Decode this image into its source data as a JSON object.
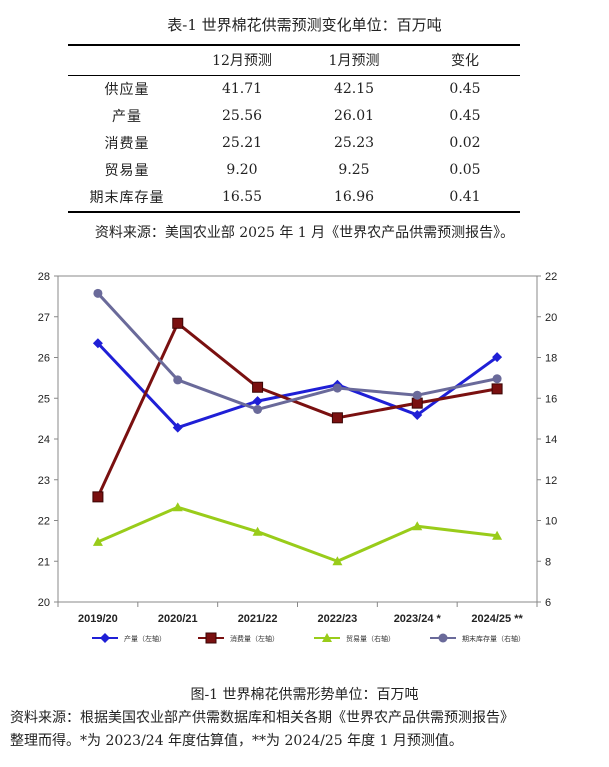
{
  "table": {
    "title": "表-1 世界棉花供需预测变化单位：百万吨",
    "headers": [
      "",
      "12月预测",
      "1月预测",
      "变化"
    ],
    "rows": [
      {
        "label": "供应量",
        "dec": "41.71",
        "jan": "42.15",
        "change": "0.45"
      },
      {
        "label": "产量",
        "dec": "25.56",
        "jan": "26.01",
        "change": "0.45"
      },
      {
        "label": "消费量",
        "dec": "25.21",
        "jan": "25.23",
        "change": "0.02"
      },
      {
        "label": "贸易量",
        "dec": "9.20",
        "jan": "9.25",
        "change": "0.05"
      },
      {
        "label": "期末库存量",
        "dec": "16.55",
        "jan": "16.96",
        "change": "0.41"
      }
    ],
    "source": "资料来源：美国农业部 2025 年 1 月《世界农产品供需预测报告》。"
  },
  "chart_data": {
    "type": "line",
    "categories": [
      "2019/20",
      "2020/21",
      "2021/22",
      "2022/23",
      "2023/24 *",
      "2024/25 **"
    ],
    "left_axis": {
      "min": 20,
      "max": 28,
      "step": 1,
      "ticks": [
        "20",
        "21",
        "22",
        "23",
        "24",
        "25",
        "26",
        "27",
        "28"
      ]
    },
    "right_axis": {
      "min": 6,
      "max": 22,
      "step": 2,
      "ticks": [
        "6",
        "8",
        "10",
        "12",
        "14",
        "16",
        "18",
        "20",
        "22"
      ]
    },
    "grid": false,
    "legend_position": "bottom",
    "series": [
      {
        "name": "产量（左轴）",
        "axis": "left",
        "color": "#1f1fd6",
        "marker": "diamond",
        "values": [
          26.35,
          24.28,
          24.93,
          25.33,
          24.59,
          26.01
        ]
      },
      {
        "name": "消费量（左轴）",
        "axis": "left",
        "color": "#7a1010",
        "marker": "square",
        "values": [
          22.58,
          26.84,
          25.27,
          24.52,
          24.88,
          25.23
        ]
      },
      {
        "name": "贸易量（右轴）",
        "axis": "right",
        "color": "#99cc1a",
        "marker": "triangle",
        "values": [
          8.95,
          10.65,
          9.45,
          8.0,
          9.72,
          9.25
        ]
      },
      {
        "name": "期末库存量（右轴）",
        "axis": "right",
        "color": "#6a6a9a",
        "marker": "circle",
        "values": [
          21.15,
          16.9,
          15.45,
          16.5,
          16.15,
          16.96
        ]
      }
    ]
  },
  "figure": {
    "caption": "图-1 世界棉花供需形势单位：百万吨",
    "source_line1": "资料来源：根据美国农业部产供需数据库和相关各期《世界农产品供需预测报告》",
    "source_line2": "整理而得。*为 2023/24 年度估算值，**为 2024/25 年度 1 月预测值。"
  }
}
